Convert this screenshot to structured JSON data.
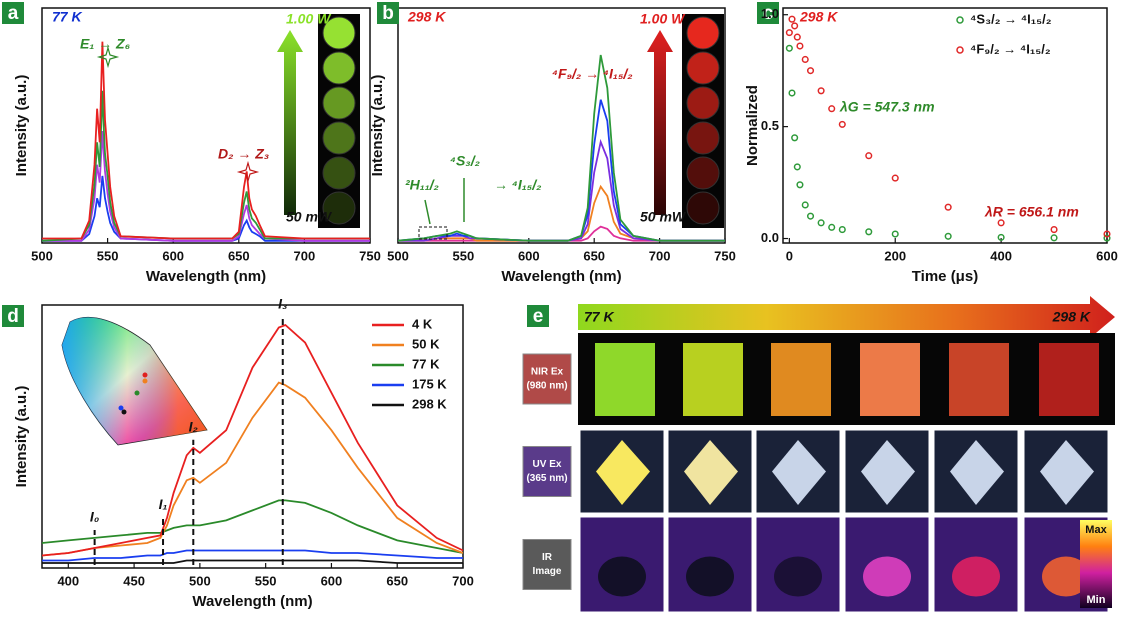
{
  "chart_data": [
    {
      "panel": "a",
      "type": "line",
      "xlabel": "Wavelength (nm)",
      "ylabel": "Intensity (a.u.)",
      "xlim": [
        500,
        750
      ],
      "xticks": [
        500,
        550,
        600,
        650,
        700,
        750
      ],
      "ylim": [
        0,
        1.05
      ],
      "annotations": [
        "77 K",
        "E₁ → Z₆",
        "D₂ → Z₃",
        "1.00 W",
        "50 mW"
      ],
      "x": [
        500,
        530,
        536,
        540,
        542,
        544,
        546,
        547,
        548,
        550,
        552,
        555,
        560,
        600,
        645,
        650,
        654,
        656,
        658,
        660,
        663,
        666,
        670,
        700,
        750
      ],
      "series": [
        {
          "color": "#1a3ef0",
          "values": [
            0.01,
            0.01,
            0.04,
            0.12,
            0.2,
            0.16,
            0.3,
            0.25,
            0.2,
            0.14,
            0.09,
            0.05,
            0.02,
            0.01,
            0.01,
            0.02,
            0.08,
            0.1,
            0.07,
            0.05,
            0.04,
            0.03,
            0.01,
            0.01,
            0.01
          ]
        },
        {
          "color": "#b03ae0",
          "values": [
            0.01,
            0.01,
            0.06,
            0.2,
            0.35,
            0.27,
            0.5,
            0.4,
            0.32,
            0.22,
            0.14,
            0.07,
            0.02,
            0.01,
            0.01,
            0.03,
            0.13,
            0.17,
            0.11,
            0.08,
            0.06,
            0.04,
            0.02,
            0.01,
            0.01
          ]
        },
        {
          "color": "#2e9a3a",
          "values": [
            0.01,
            0.02,
            0.08,
            0.26,
            0.45,
            0.34,
            0.68,
            0.52,
            0.4,
            0.3,
            0.18,
            0.09,
            0.03,
            0.02,
            0.02,
            0.04,
            0.18,
            0.23,
            0.15,
            0.11,
            0.09,
            0.06,
            0.02,
            0.02,
            0.02
          ]
        },
        {
          "color": "#e82020",
          "values": [
            0.02,
            0.02,
            0.1,
            0.35,
            0.6,
            0.45,
            0.9,
            0.72,
            0.55,
            0.4,
            0.25,
            0.12,
            0.03,
            0.02,
            0.02,
            0.05,
            0.25,
            0.32,
            0.2,
            0.15,
            0.12,
            0.08,
            0.03,
            0.02,
            0.02
          ]
        }
      ]
    },
    {
      "panel": "b",
      "type": "line",
      "xlabel": "Wavelength (nm)",
      "ylabel": "Intensity (a.u.)",
      "xlim": [
        500,
        750
      ],
      "xticks": [
        500,
        550,
        600,
        650,
        700,
        750
      ],
      "ylim": [
        0,
        1
      ],
      "annotations": [
        "298 K",
        "⁴F₉/₂ → ⁴I₁₅/₂",
        "²H₁₁/₂",
        "⁴S₃/₂",
        "→ ⁴I₁₅/₂",
        "1.00 W",
        "50 mW"
      ],
      "x": [
        500,
        520,
        530,
        540,
        545,
        550,
        555,
        560,
        600,
        630,
        640,
        645,
        650,
        655,
        660,
        665,
        670,
        680,
        700,
        750
      ],
      "series": [
        {
          "color": "#e0309a",
          "values": [
            0.01,
            0.01,
            0.01,
            0.01,
            0.01,
            0.01,
            0.01,
            0.01,
            0.01,
            0.01,
            0.01,
            0.02,
            0.05,
            0.07,
            0.06,
            0.03,
            0.02,
            0.01,
            0.01,
            0.01
          ]
        },
        {
          "color": "#f08020",
          "values": [
            0.01,
            0.01,
            0.02,
            0.02,
            0.02,
            0.02,
            0.02,
            0.01,
            0.01,
            0.01,
            0.02,
            0.05,
            0.17,
            0.24,
            0.2,
            0.09,
            0.04,
            0.02,
            0.01,
            0.01
          ]
        },
        {
          "color": "#7a2ee0",
          "values": [
            0.01,
            0.01,
            0.02,
            0.03,
            0.03,
            0.03,
            0.02,
            0.02,
            0.01,
            0.01,
            0.02,
            0.08,
            0.3,
            0.43,
            0.36,
            0.16,
            0.06,
            0.02,
            0.01,
            0.01
          ]
        },
        {
          "color": "#1a3ef0",
          "values": [
            0.01,
            0.02,
            0.03,
            0.03,
            0.04,
            0.03,
            0.03,
            0.02,
            0.01,
            0.01,
            0.03,
            0.12,
            0.42,
            0.61,
            0.52,
            0.22,
            0.08,
            0.03,
            0.01,
            0.01
          ]
        },
        {
          "color": "#2e9a3a",
          "values": [
            0.01,
            0.02,
            0.03,
            0.04,
            0.05,
            0.04,
            0.03,
            0.02,
            0.01,
            0.01,
            0.03,
            0.15,
            0.55,
            0.8,
            0.66,
            0.3,
            0.1,
            0.03,
            0.01,
            0.01
          ]
        }
      ]
    },
    {
      "panel": "c",
      "type": "scatter",
      "xlabel": "Time (μs)",
      "ylabel": "Normalized",
      "xlim": [
        -12,
        600
      ],
      "xticks": [
        0,
        200,
        400,
        600
      ],
      "ylim": [
        -0.02,
        1.03
      ],
      "yticks": [
        {
          "value": 0,
          "label": "0.0"
        },
        0.5,
        {
          "value": 1,
          "label": "1.0"
        }
      ],
      "legend": "upper right",
      "annotations": [
        "298 K",
        "λG = 547.3 nm",
        "λR = 656.1 nm"
      ],
      "x": [
        0,
        5,
        10,
        15,
        20,
        30,
        40,
        60,
        80,
        100,
        150,
        200,
        300,
        400,
        500,
        600
      ],
      "series": [
        {
          "name": "⁴S₃/₂ → ⁴I₁₅/₂",
          "color": "#2e9a3a",
          "values": [
            0.85,
            0.65,
            0.45,
            0.32,
            0.24,
            0.15,
            0.1,
            0.07,
            0.05,
            0.04,
            0.03,
            0.02,
            0.01,
            0.005,
            0.003,
            0.002
          ]
        },
        {
          "name": "⁴F₉/₂ → ⁴I₁₅/₂",
          "color": "#e02828",
          "values": [
            0.92,
            0.98,
            0.95,
            0.9,
            0.86,
            0.8,
            0.75,
            0.66,
            0.58,
            0.51,
            0.37,
            0.27,
            0.14,
            0.07,
            0.04,
            0.02
          ]
        }
      ]
    },
    {
      "panel": "d",
      "type": "line",
      "xlabel": "Wavelength (nm)",
      "ylabel": "Intensity (a.u.)",
      "xlim": [
        380,
        700
      ],
      "xticks": [
        400,
        450,
        500,
        550,
        600,
        650,
        700
      ],
      "ylim": [
        0,
        1.05
      ],
      "legend": "upper right",
      "markers": [
        {
          "label": "I₀",
          "x": 420,
          "y": 0.12
        },
        {
          "label": "I₁",
          "x": 472,
          "y": 0.17
        },
        {
          "label": "I₂",
          "x": 495,
          "y": 0.48
        },
        {
          "label": "I₃",
          "x": 563,
          "y": 0.97
        }
      ],
      "x": [
        380,
        400,
        420,
        440,
        460,
        470,
        475,
        480,
        490,
        495,
        500,
        520,
        540,
        560,
        565,
        580,
        600,
        620,
        650,
        680,
        700
      ],
      "series": [
        {
          "name": "298 K",
          "color": "#111111",
          "values": [
            0.02,
            0.02,
            0.02,
            0.02,
            0.02,
            0.02,
            0.02,
            0.02,
            0.03,
            0.03,
            0.03,
            0.03,
            0.03,
            0.03,
            0.03,
            0.03,
            0.03,
            0.03,
            0.02,
            0.02,
            0.02
          ]
        },
        {
          "name": "175 K",
          "color": "#1a3ef0",
          "values": [
            0.03,
            0.03,
            0.04,
            0.04,
            0.05,
            0.05,
            0.06,
            0.06,
            0.07,
            0.07,
            0.07,
            0.07,
            0.07,
            0.07,
            0.07,
            0.07,
            0.06,
            0.06,
            0.05,
            0.04,
            0.04
          ]
        },
        {
          "name": "77 K",
          "color": "#2a8a2a",
          "values": [
            0.1,
            0.11,
            0.12,
            0.13,
            0.14,
            0.14,
            0.15,
            0.16,
            0.17,
            0.17,
            0.17,
            0.19,
            0.23,
            0.27,
            0.27,
            0.26,
            0.22,
            0.17,
            0.11,
            0.08,
            0.06
          ]
        },
        {
          "name": "50 K",
          "color": "#f08020",
          "values": [
            0.05,
            0.06,
            0.08,
            0.09,
            0.1,
            0.12,
            0.17,
            0.25,
            0.35,
            0.36,
            0.34,
            0.42,
            0.6,
            0.74,
            0.73,
            0.68,
            0.55,
            0.4,
            0.2,
            0.1,
            0.06
          ]
        },
        {
          "name": "4 K",
          "color": "#e82020",
          "values": [
            0.05,
            0.06,
            0.08,
            0.1,
            0.12,
            0.13,
            0.2,
            0.3,
            0.45,
            0.48,
            0.46,
            0.55,
            0.8,
            0.96,
            0.97,
            0.9,
            0.7,
            0.5,
            0.25,
            0.12,
            0.07
          ]
        }
      ]
    }
  ],
  "panel_e": {
    "panel": "e",
    "start": "77 K",
    "end": "298 K",
    "rows": [
      {
        "label": "NIR Ex",
        "sublabel": "(980 nm)"
      },
      {
        "label": "UV Ex",
        "sublabel": "(365 nm)"
      },
      {
        "label": "IR",
        "sublabel": "Image"
      }
    ],
    "colorbar": {
      "max": "Max",
      "min": "Min"
    }
  }
}
